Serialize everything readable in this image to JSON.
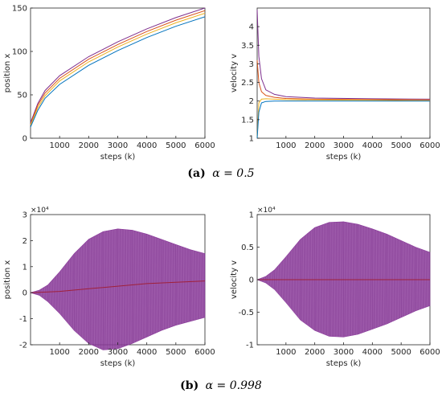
{
  "captions": {
    "a": {
      "label": "(a)",
      "text": "α = 0.5"
    },
    "b": {
      "label": "(b)",
      "text": "α = 0.998"
    }
  },
  "chart_data": [
    {
      "id": "a-position",
      "type": "line",
      "xlabel": "steps (k)",
      "ylabel": "position x",
      "xlim": [
        0,
        6000
      ],
      "ylim": [
        0,
        150
      ],
      "xticks": [
        "1000",
        "2000",
        "3000",
        "4000",
        "5000",
        "6000"
      ],
      "xtick_values": [
        1000,
        2000,
        3000,
        4000,
        5000,
        6000
      ],
      "yticks": [
        "0",
        "50",
        "100",
        "150"
      ],
      "ytick_values": [
        0,
        50,
        100,
        150
      ],
      "series": [
        {
          "color": "#7e2f8e",
          "x": [
            1,
            250,
            500,
            1000,
            2000,
            3000,
            4000,
            5000,
            6000
          ],
          "y": [
            18,
            40,
            55,
            72,
            94,
            111,
            126,
            139,
            150
          ]
        },
        {
          "color": "#d95319",
          "x": [
            1,
            250,
            500,
            1000,
            2000,
            3000,
            4000,
            5000,
            6000
          ],
          "y": [
            16,
            38,
            52,
            69,
            91,
            108,
            123,
            136,
            147
          ]
        },
        {
          "color": "#edb120",
          "x": [
            1,
            250,
            500,
            1000,
            2000,
            3000,
            4000,
            5000,
            6000
          ],
          "y": [
            15,
            35,
            49,
            66,
            88,
            105,
            120,
            133,
            144
          ]
        },
        {
          "color": "#0072bd",
          "x": [
            1,
            250,
            500,
            1000,
            2000,
            3000,
            4000,
            5000,
            6000
          ],
          "y": [
            13,
            32,
            46,
            62,
            84,
            101,
            116,
            129,
            140
          ]
        }
      ]
    },
    {
      "id": "a-velocity",
      "type": "line",
      "xlabel": "steps (k)",
      "ylabel": "velocity v",
      "xlim": [
        0,
        6000
      ],
      "ylim": [
        1,
        4.5
      ],
      "xticks": [
        "1000",
        "2000",
        "3000",
        "4000",
        "5000",
        "6000"
      ],
      "xtick_values": [
        1000,
        2000,
        3000,
        4000,
        5000,
        6000
      ],
      "yticks": [
        "1",
        "1.5",
        "2",
        "2.5",
        "3",
        "3.5",
        "4"
      ],
      "ytick_values": [
        1,
        1.5,
        2,
        2.5,
        3,
        3.5,
        4
      ],
      "series": [
        {
          "color": "#7e2f8e",
          "x": [
            1,
            60,
            150,
            300,
            600,
            1000,
            2000,
            4000,
            6000
          ],
          "y": [
            4.45,
            3.2,
            2.6,
            2.3,
            2.18,
            2.12,
            2.08,
            2.06,
            2.05
          ]
        },
        {
          "color": "#d95319",
          "x": [
            1,
            60,
            150,
            300,
            600,
            1000,
            2000,
            4000,
            6000
          ],
          "y": [
            3.1,
            2.5,
            2.25,
            2.15,
            2.1,
            2.07,
            2.05,
            2.04,
            2.03
          ]
        },
        {
          "color": "#edb120",
          "x": [
            1,
            60,
            150,
            300,
            600,
            1000,
            2000,
            4000,
            6000
          ],
          "y": [
            1.0,
            1.95,
            2.05,
            2.06,
            2.05,
            2.04,
            2.03,
            2.02,
            2.01
          ]
        },
        {
          "color": "#0072bd",
          "x": [
            1,
            60,
            150,
            300,
            600,
            1000,
            2000,
            4000,
            6000
          ],
          "y": [
            1.0,
            1.7,
            1.95,
            1.99,
            2.0,
            2.0,
            2.0,
            2.0,
            2.0
          ]
        }
      ]
    },
    {
      "id": "b-position",
      "type": "area",
      "xlabel": "steps (k)",
      "ylabel": "position x",
      "multiplier": "×10⁴",
      "xlim": [
        0,
        6000
      ],
      "ylim": [
        -2,
        3
      ],
      "xticks": [
        "1000",
        "2000",
        "3000",
        "4000",
        "5000",
        "6000"
      ],
      "xtick_values": [
        1000,
        2000,
        3000,
        4000,
        5000,
        6000
      ],
      "yticks": [
        "-2",
        "-1",
        "0",
        "1",
        "2",
        "3"
      ],
      "ytick_values": [
        -2,
        -1,
        0,
        1,
        2,
        3
      ],
      "envelope": {
        "color": "#8e3f9e",
        "x": [
          0,
          300,
          600,
          1000,
          1500,
          2000,
          2500,
          3000,
          3500,
          4000,
          4500,
          5000,
          5500,
          6000
        ],
        "upper": [
          0,
          0.1,
          0.3,
          0.8,
          1.5,
          2.05,
          2.35,
          2.45,
          2.4,
          2.25,
          2.05,
          1.85,
          1.65,
          1.5
        ],
        "lower": [
          0,
          -0.1,
          -0.35,
          -0.8,
          -1.45,
          -1.95,
          -2.2,
          -2.15,
          -1.95,
          -1.7,
          -1.45,
          -1.25,
          -1.1,
          -0.95
        ]
      },
      "center": {
        "color": "#a0203a",
        "x": [
          0,
          1000,
          2000,
          3000,
          4000,
          5000,
          6000
        ],
        "y": [
          0,
          0.05,
          0.15,
          0.25,
          0.35,
          0.4,
          0.45
        ]
      }
    },
    {
      "id": "b-velocity",
      "type": "area",
      "xlabel": "steps (k)",
      "ylabel": "velocity v",
      "multiplier": "×10⁴",
      "xlim": [
        0,
        6000
      ],
      "ylim": [
        -1,
        1
      ],
      "xticks": [
        "1000",
        "2000",
        "3000",
        "4000",
        "5000",
        "6000"
      ],
      "xtick_values": [
        1000,
        2000,
        3000,
        4000,
        5000,
        6000
      ],
      "yticks": [
        "-1",
        "-0.5",
        "0",
        "0.5",
        "1"
      ],
      "ytick_values": [
        -1,
        -0.5,
        0,
        0.5,
        1
      ],
      "envelope": {
        "color": "#8e3f9e",
        "x": [
          0,
          300,
          600,
          1000,
          1500,
          2000,
          2500,
          3000,
          3500,
          4000,
          4500,
          5000,
          5500,
          6000
        ],
        "upper": [
          0,
          0.05,
          0.15,
          0.35,
          0.62,
          0.8,
          0.88,
          0.89,
          0.85,
          0.78,
          0.7,
          0.6,
          0.5,
          0.42
        ],
        "lower": [
          0,
          -0.05,
          -0.15,
          -0.35,
          -0.62,
          -0.78,
          -0.87,
          -0.88,
          -0.84,
          -0.76,
          -0.68,
          -0.58,
          -0.48,
          -0.4
        ]
      },
      "center": {
        "color": "#a0203a",
        "x": [
          0,
          6000
        ],
        "y": [
          0,
          0
        ]
      }
    }
  ]
}
